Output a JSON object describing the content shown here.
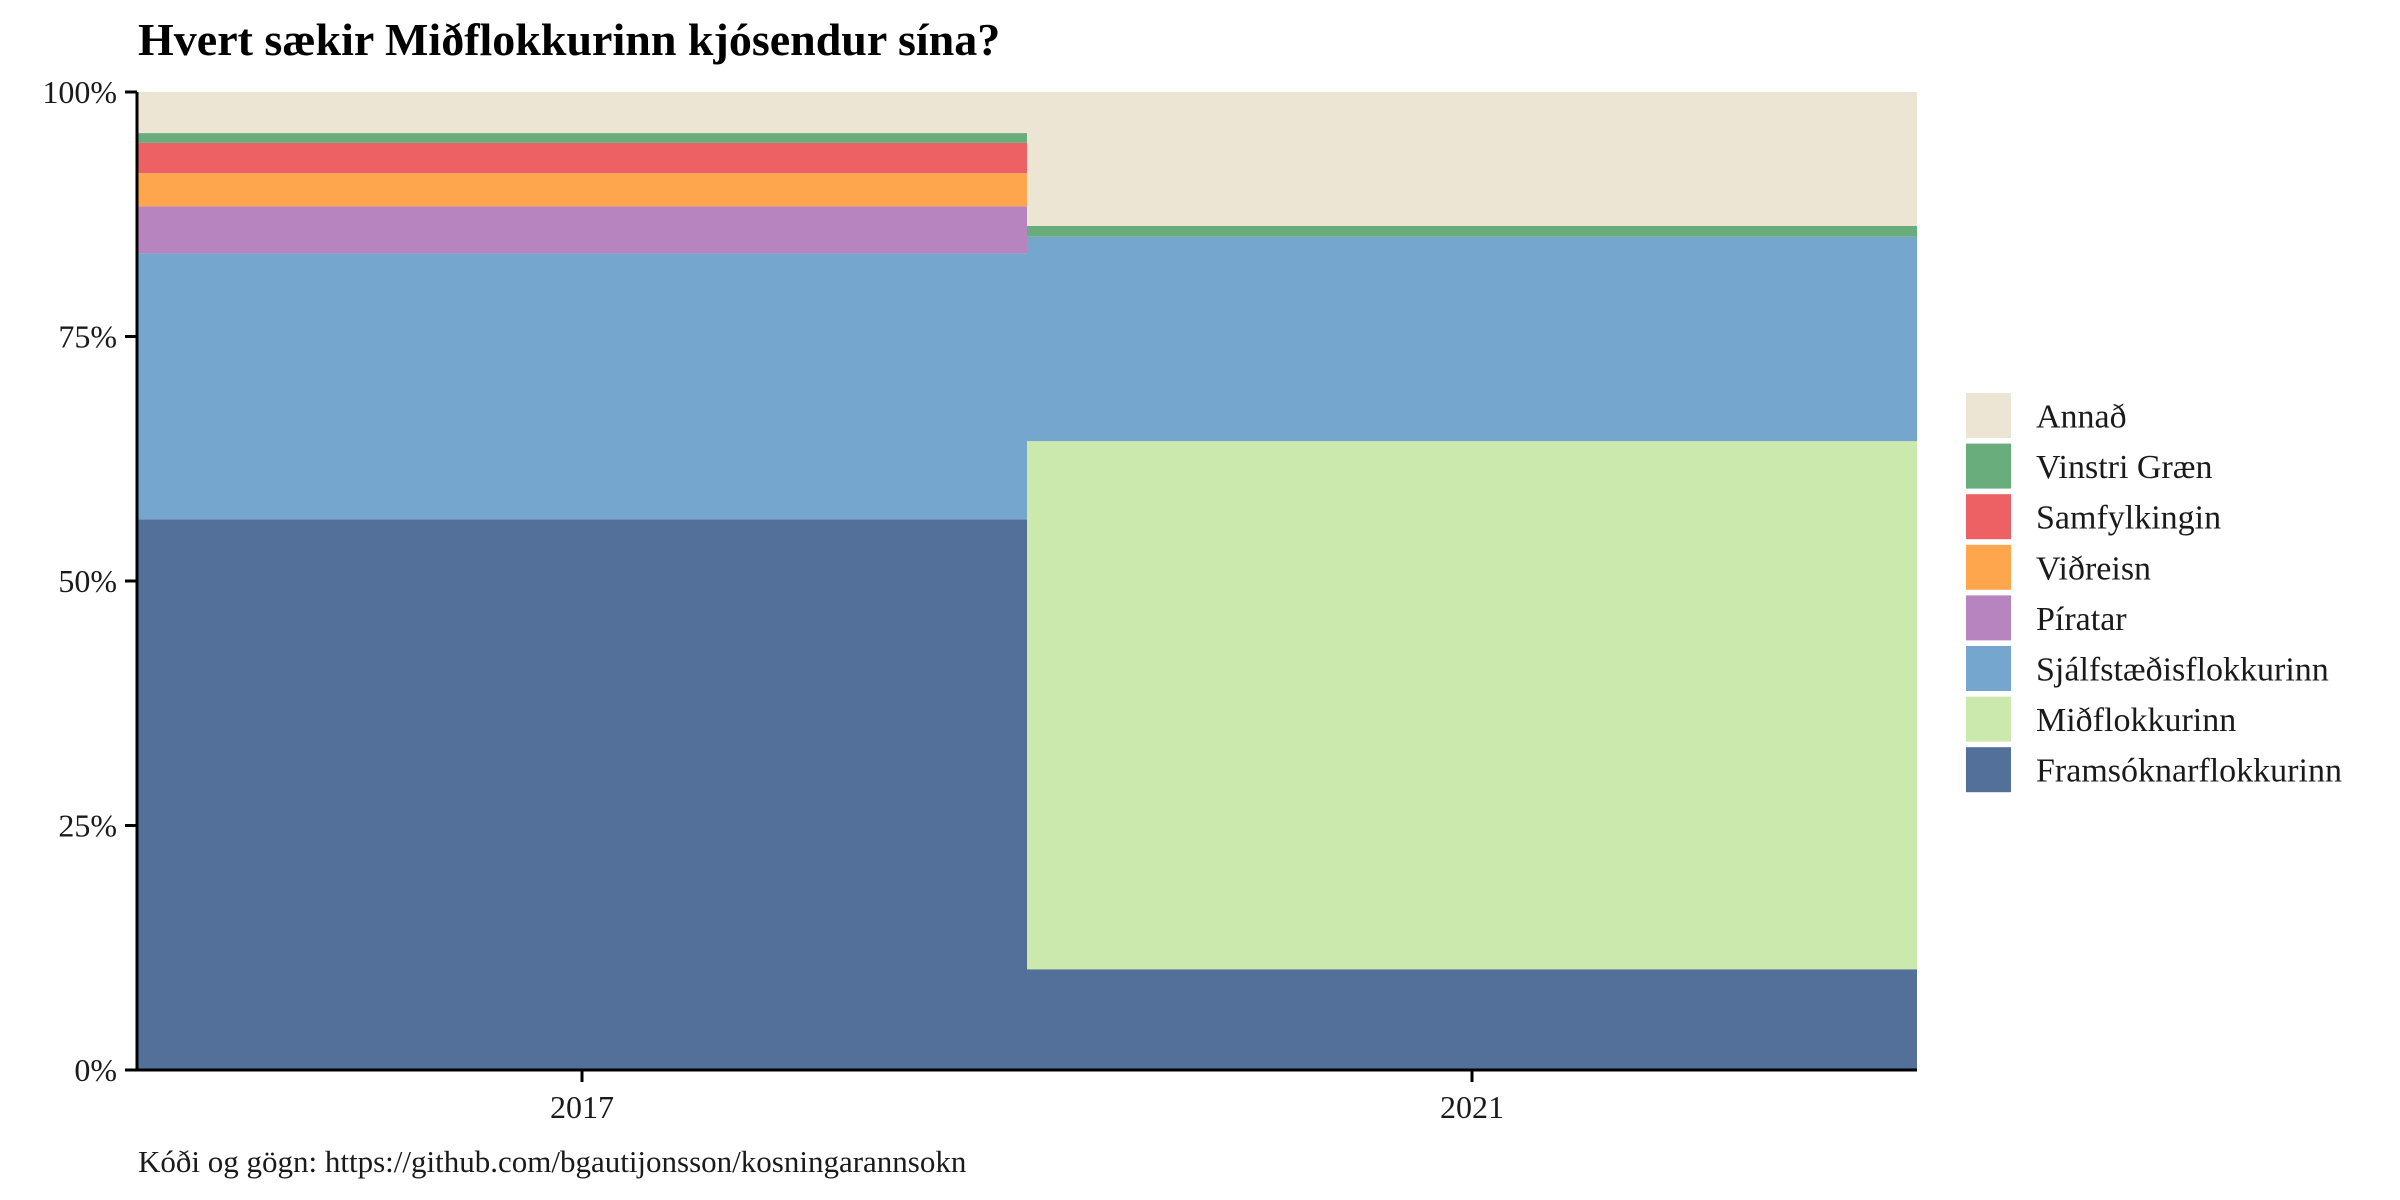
{
  "chart_data": {
    "type": "bar",
    "stacked": true,
    "normalized": true,
    "title": "Hvert sækir Miðflokkurinn kjósendur sína?",
    "caption": "Kóði og gögn: https://github.com/bgautijonsson/kosningarannsokn",
    "xlabel": "",
    "ylabel": "",
    "ylim": [
      0,
      100
    ],
    "y_ticks": [
      {
        "value": 0,
        "label": "0%"
      },
      {
        "value": 25,
        "label": "25%"
      },
      {
        "value": 50,
        "label": "50%"
      },
      {
        "value": 75,
        "label": "75%"
      },
      {
        "value": 100,
        "label": "100%"
      }
    ],
    "categories": [
      "2017",
      "2021"
    ],
    "bar_width_share": [
      0.5,
      0.5
    ],
    "grid": false,
    "legend_position": "right",
    "series": [
      {
        "name": "Framsóknarflokkurinn",
        "color": "#52709a",
        "values": [
          56.3,
          10.3
        ]
      },
      {
        "name": "Miðflokkurinn",
        "color": "#cbe9ad",
        "values": [
          0,
          54.0
        ]
      },
      {
        "name": "Sjálfstæðisflokkurinn",
        "color": "#75a6cd",
        "values": [
          27.2,
          20.9
        ]
      },
      {
        "name": "Píratar",
        "color": "#b784bf",
        "values": [
          4.8,
          0
        ]
      },
      {
        "name": "Viðreisn",
        "color": "#fea64e",
        "values": [
          3.4,
          0
        ]
      },
      {
        "name": "Samfylkingin",
        "color": "#ed6063",
        "values": [
          3.1,
          0
        ]
      },
      {
        "name": "Vinstri Græn",
        "color": "#68ad7b",
        "values": [
          1.0,
          1.1
        ]
      },
      {
        "name": "Annað",
        "color": "#ede5d3",
        "values": [
          4.2,
          13.7
        ]
      }
    ]
  }
}
